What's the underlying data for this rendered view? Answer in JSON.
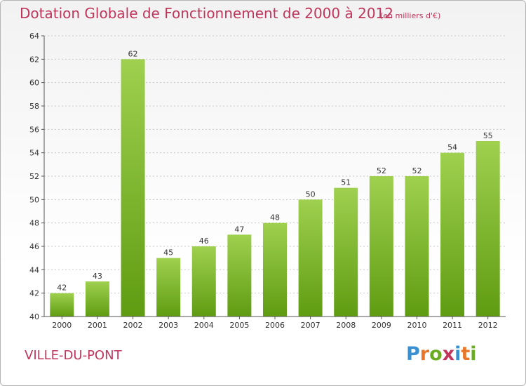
{
  "header": {
    "title": "Dotation Globale de Fonctionnement de 2000 à 2012",
    "unit_note": "(en milliers d'€)"
  },
  "footer": {
    "commune_name": "VILLE-DU-PONT",
    "logo_text": "Proxiti"
  },
  "colors": {
    "title": "#c0355b",
    "bar_top": "#9fd04f",
    "bar_bottom": "#5f9c12",
    "logo_letters": [
      "#3a8fd0",
      "#e8772a",
      "#6aab23",
      "#c0355b",
      "#3a8fd0",
      "#e8772a",
      "#6aab23"
    ]
  },
  "chart_data": {
    "type": "bar",
    "title": "Dotation Globale de Fonctionnement de 2000 à 2012",
    "subtitle": "(en milliers d'€)",
    "categories": [
      "2000",
      "2001",
      "2002",
      "2003",
      "2004",
      "2005",
      "2006",
      "2007",
      "2008",
      "2009",
      "2010",
      "2011",
      "2012"
    ],
    "values": [
      42,
      43,
      62,
      45,
      46,
      47,
      48,
      50,
      51,
      52,
      52,
      54,
      55
    ],
    "data_labels": [
      "42",
      "43",
      "62",
      "45",
      "46",
      "47",
      "48",
      "50",
      "51",
      "52",
      "52",
      "54",
      "55"
    ],
    "ylim": [
      40,
      64
    ],
    "yticks": [
      40,
      42,
      44,
      46,
      48,
      50,
      52,
      54,
      56,
      58,
      60,
      62,
      64
    ],
    "xlabel": "",
    "ylabel": "",
    "grid": true,
    "legend": false
  }
}
